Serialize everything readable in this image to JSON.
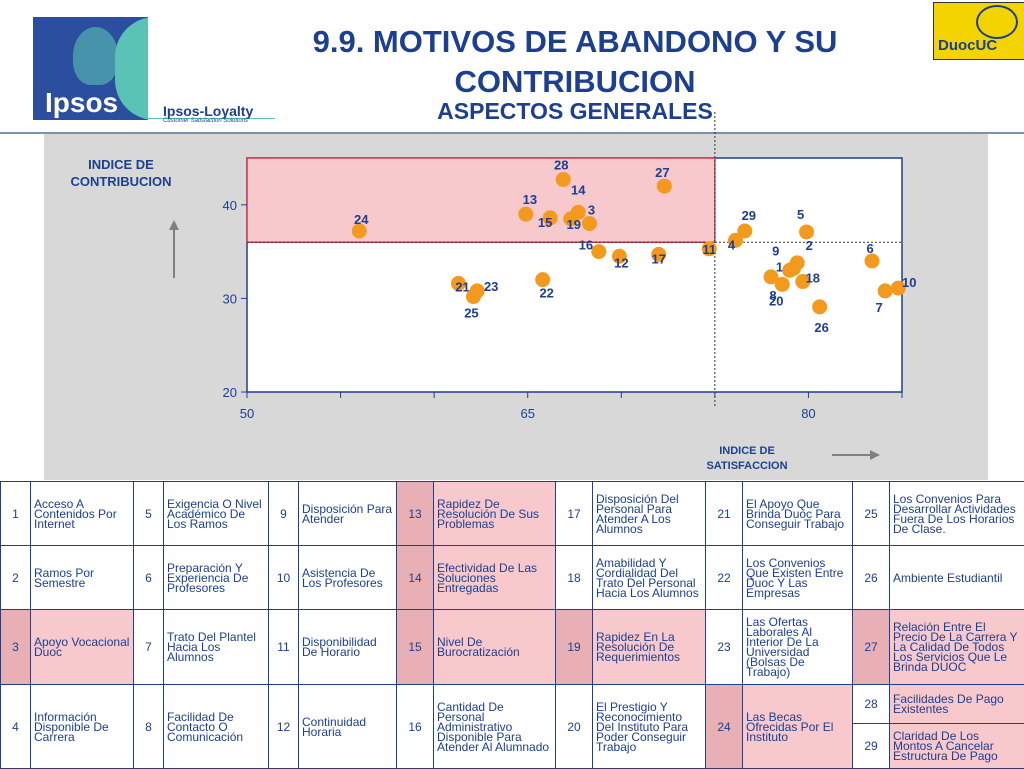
{
  "header": {
    "title": "9.9. MOTIVOS DE ABANDONO Y SU CONTRIBUCION",
    "subtitle": "ASPECTOS GENERALES",
    "logo_left": "Ipsos",
    "logo_left_sub": "Ipsos-Loyalty",
    "logo_left_tagline": "Customer Satisfaction Solutions",
    "logo_right": "DuocUC"
  },
  "colors": {
    "title": "#1d3f8f",
    "point": "#f39a1e",
    "highlight": "#f7c8cc",
    "highlight_border": "#d23b4a"
  },
  "chart_data": {
    "type": "scatter",
    "ylabel": "INDICE DE CONTRIBUCION",
    "xlabel": "INDICE DE SATISFACCION",
    "xlim": [
      50,
      85
    ],
    "ylim": [
      20,
      45
    ],
    "xticks": [
      50,
      65,
      80
    ],
    "yticks": [
      20,
      30,
      40
    ],
    "reference_lines": {
      "x": 75,
      "y": 36
    },
    "highlight_region": {
      "x": [
        50,
        75
      ],
      "y": [
        36,
        45
      ]
    },
    "points": [
      {
        "label": "1",
        "x": 79.2,
        "y": 33.2
      },
      {
        "label": "2",
        "x": 79.4,
        "y": 33.8
      },
      {
        "label": "3",
        "x": 68.3,
        "y": 38.0
      },
      {
        "label": "4",
        "x": 76.1,
        "y": 36.2
      },
      {
        "label": "5",
        "x": 79.9,
        "y": 37.1
      },
      {
        "label": "6",
        "x": 83.4,
        "y": 34.0
      },
      {
        "label": "7",
        "x": 84.1,
        "y": 30.8
      },
      {
        "label": "8",
        "x": 78.0,
        "y": 32.3
      },
      {
        "label": "9",
        "x": 79.0,
        "y": 33.0
      },
      {
        "label": "10",
        "x": 84.8,
        "y": 31.1
      },
      {
        "label": "11",
        "x": 74.7,
        "y": 35.3
      },
      {
        "label": "12",
        "x": 69.9,
        "y": 34.5
      },
      {
        "label": "13",
        "x": 64.9,
        "y": 39.0
      },
      {
        "label": "14",
        "x": 67.7,
        "y": 39.2
      },
      {
        "label": "15",
        "x": 66.2,
        "y": 38.6
      },
      {
        "label": "16",
        "x": 68.8,
        "y": 35.0
      },
      {
        "label": "17",
        "x": 72.0,
        "y": 34.7
      },
      {
        "label": "18",
        "x": 79.7,
        "y": 31.8
      },
      {
        "label": "19",
        "x": 67.3,
        "y": 38.5
      },
      {
        "label": "20",
        "x": 78.6,
        "y": 31.5
      },
      {
        "label": "21",
        "x": 61.3,
        "y": 31.6
      },
      {
        "label": "22",
        "x": 65.8,
        "y": 32.0
      },
      {
        "label": "23",
        "x": 62.3,
        "y": 30.8
      },
      {
        "label": "24",
        "x": 56.0,
        "y": 37.2
      },
      {
        "label": "25",
        "x": 62.1,
        "y": 30.2
      },
      {
        "label": "26",
        "x": 80.6,
        "y": 29.1
      },
      {
        "label": "27",
        "x": 72.3,
        "y": 42.0
      },
      {
        "label": "28",
        "x": 66.9,
        "y": 42.7
      },
      {
        "label": "29",
        "x": 76.6,
        "y": 37.2
      }
    ]
  },
  "legend": {
    "rows": [
      [
        {
          "num": "1",
          "text": "Acceso A Contenidos Por Internet"
        },
        {
          "num": "5",
          "text": "Exigencia O Nivel Académico De Los Ramos"
        },
        {
          "num": "9",
          "text": "Disposición Para Atender"
        },
        {
          "num": "13",
          "text": "Rapidez De Resolución De Sus Problemas"
        },
        {
          "num": "17",
          "text": "Disposición Del Personal Para Atender A Los Alumnos"
        },
        {
          "num": "21",
          "text": "El Apoyo Que Brinda Duoc Para Conseguir Trabajo"
        },
        {
          "num": "25",
          "text": "Los Convenios Para Desarrollar Actividades Fuera De Los Horarios De Clase."
        }
      ],
      [
        {
          "num": "2",
          "text": "Ramos Por Semestre"
        },
        {
          "num": "6",
          "text": "Preparación Y Experiencia De Profesores"
        },
        {
          "num": "10",
          "text": "Asistencia De Los Profesores"
        },
        {
          "num": "14",
          "text": "Efectividad De Las Soluciones Entregadas"
        },
        {
          "num": "18",
          "text": "Amabilidad Y Cordialidad Del Trato Del Personal Hacia Los Alumnos"
        },
        {
          "num": "22",
          "text": "Los Convenios Que Existen Entre Duoc Y Las Empresas"
        },
        {
          "num": "26",
          "text": "Ambiente Estudiantil"
        }
      ],
      [
        {
          "num": "3",
          "text": "Apoyo Vocacional Duoc"
        },
        {
          "num": "7",
          "text": "Trato Del Plantel Hacia Los Alumnos"
        },
        {
          "num": "11",
          "text": "Disponibilidad De Horario"
        },
        {
          "num": "15",
          "text": "Nivel De Burocratización"
        },
        {
          "num": "19",
          "text": "Rapidez En La Resolución De Requerimientos"
        },
        {
          "num": "23",
          "text": "Las Ofertas Laborales Al Interior De La Universidad (Bolsas De Trabajo)"
        },
        {
          "num": "27",
          "text": "Relación Entre El Precio De La Carrera Y La Calidad De Todos Los Servicios Que Le Brinda DUOC"
        }
      ],
      [
        {
          "num": "4",
          "text": "Información Disponible De Carrera"
        },
        {
          "num": "8",
          "text": "Facilidad De Contacto O Comunicación"
        },
        {
          "num": "12",
          "text": "Continuidad Horaria"
        },
        {
          "num": "16",
          "text": "Cantidad De Personal Administrativo Disponible Para Atender Al Alumnado"
        },
        {
          "num": "20",
          "text": "El Prestigio Y Reconocimiento Del Instituto Para Poder Conseguir Trabajo"
        },
        {
          "num": "24",
          "text": "Las Becas Ofrecidas Por El Instituto"
        },
        {
          "num": "28",
          "text": "Facilidades De Pago Existentes"
        }
      ]
    ],
    "extra": {
      "num": "29",
      "text": "Claridad De Los Montos A Cancelar Estructura De Pago"
    }
  }
}
